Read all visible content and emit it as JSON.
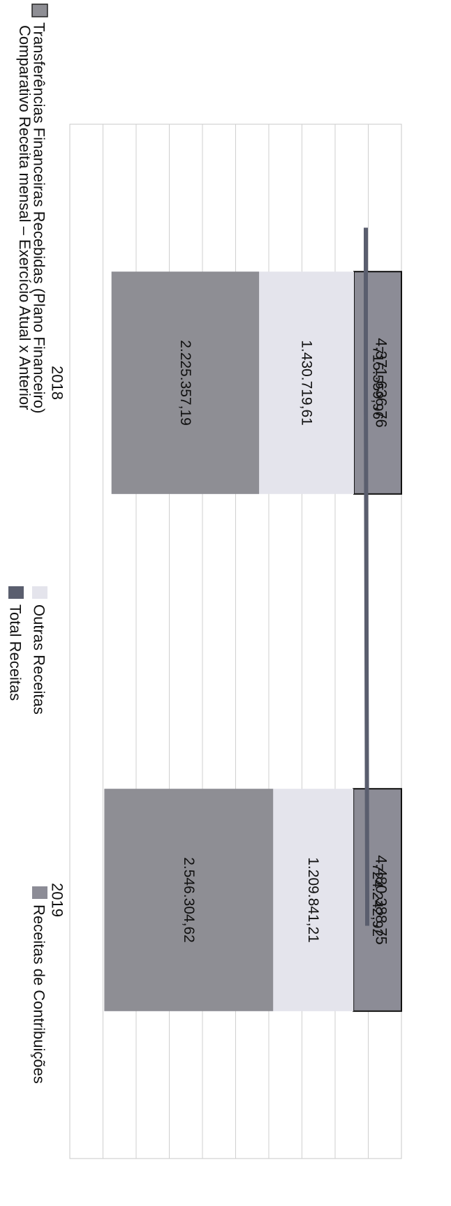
{
  "chart_data": {
    "type": "bar",
    "stacked": true,
    "title": "Comparativo Receita mensal – Exercício Atual x Anterior",
    "categories": [
      "2018",
      "2019"
    ],
    "series": [
      {
        "name": "Receitas de Contribuições",
        "values": [
          715559.96,
          724242.92
        ],
        "labels": [
          "715.559,96",
          "724.242,92"
        ],
        "color": "#8c8c96",
        "outlined": true
      },
      {
        "name": "Outras Receitas",
        "values": [
          1430719.61,
          1209841.21
        ],
        "labels": [
          "1.430.719,61",
          "1.209.841,21"
        ],
        "color": "#e4e4ec"
      },
      {
        "name": "Transferências Financeiras Recebidas (Plano Financeiro)",
        "values": [
          2225357.19,
          2546304.62
        ],
        "labels": [
          "2.225.357,19",
          "2.546.304,62"
        ],
        "color": "#8e8e94"
      }
    ],
    "totals": {
      "name": "Total Receitas",
      "values": [
        4371636.76,
        4480388.75
      ],
      "labels": [
        "4.371.636,76",
        "4.480.388,75"
      ],
      "color": "#5a5e6e"
    },
    "legend": {
      "position": "bottom",
      "items": [
        {
          "name": "Transferências Financeiras Recebidas (Plano Financeiro)",
          "color": "#8e8e94"
        },
        {
          "name": "Outras Receitas",
          "color": "#e4e4ec"
        },
        {
          "name": "Receitas de Contribuições",
          "color": "#8c8c96"
        },
        {
          "name": "Total Receitas",
          "color": "#5a5e6e"
        }
      ]
    },
    "grid": true,
    "orientation": "rotated-90-clockwise"
  }
}
